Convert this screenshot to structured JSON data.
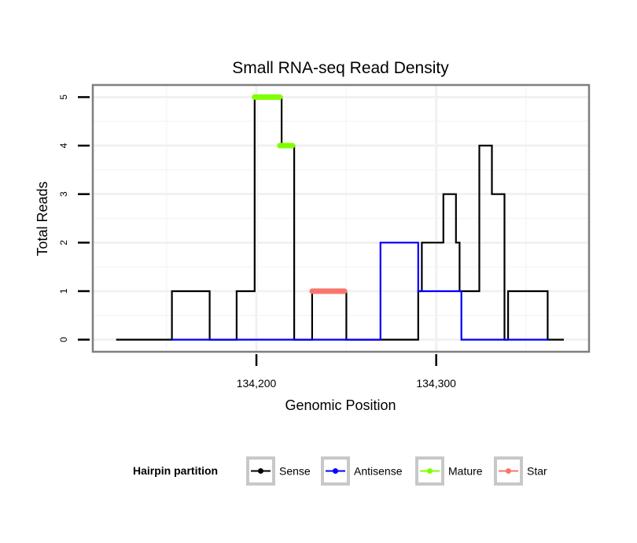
{
  "chart_data": {
    "type": "line",
    "title": "Small RNA-seq Read Density",
    "xlabel": "Genomic Position",
    "ylabel": "Total Reads",
    "xlim": [
      134109,
      134385
    ],
    "ylim": [
      -0.25,
      5.25
    ],
    "x_ticks": [
      134200,
      134300
    ],
    "x_tick_labels": [
      "134,200",
      "134,300"
    ],
    "y_ticks": [
      0,
      1,
      2,
      3,
      4,
      5
    ],
    "y_tick_labels": [
      "0",
      "1",
      "2",
      "3",
      "4",
      "5"
    ],
    "grid": true,
    "legend": {
      "title": "Hairpin partition",
      "position": "bottom",
      "entries": [
        "Sense",
        "Antisense",
        "Mature",
        "Star"
      ]
    },
    "series": [
      {
        "name": "Sense",
        "color": "#000000",
        "style": "line",
        "x": [
          134122,
          134153,
          134153,
          134174,
          134174,
          134189,
          134189,
          134199,
          134199,
          134214,
          134214,
          134221,
          134221,
          134231,
          134231,
          134250,
          134250,
          134290,
          134290,
          134292,
          134292,
          134304,
          134304,
          134311,
          134311,
          134313,
          134313,
          134324,
          134324,
          134331,
          134331,
          134338,
          134338,
          134340,
          134340,
          134362,
          134362,
          134371
        ],
        "y": [
          0,
          0,
          1,
          1,
          0,
          0,
          1,
          1,
          5,
          5,
          4,
          4,
          0,
          0,
          1,
          1,
          0,
          0,
          1,
          1,
          2,
          2,
          3,
          3,
          2,
          2,
          1,
          1,
          4,
          4,
          3,
          3,
          0,
          0,
          1,
          1,
          0,
          0
        ]
      },
      {
        "name": "Antisense",
        "color": "#0000ff",
        "style": "line",
        "x": [
          134153,
          134269,
          134269,
          134290,
          134290,
          134314,
          134314,
          134362
        ],
        "y": [
          0,
          0,
          2,
          2,
          1,
          1,
          0,
          0
        ]
      },
      {
        "name": "Mature",
        "color": "#7fff00",
        "style": "points",
        "segments": [
          {
            "x": [
              134199,
              134213
            ],
            "y": 5
          },
          {
            "x": [
              134213,
              134220
            ],
            "y": 4
          }
        ]
      },
      {
        "name": "Star",
        "color": "#f8766d",
        "style": "points",
        "segments": [
          {
            "x": [
              134231,
              134249
            ],
            "y": 1
          }
        ]
      }
    ]
  }
}
